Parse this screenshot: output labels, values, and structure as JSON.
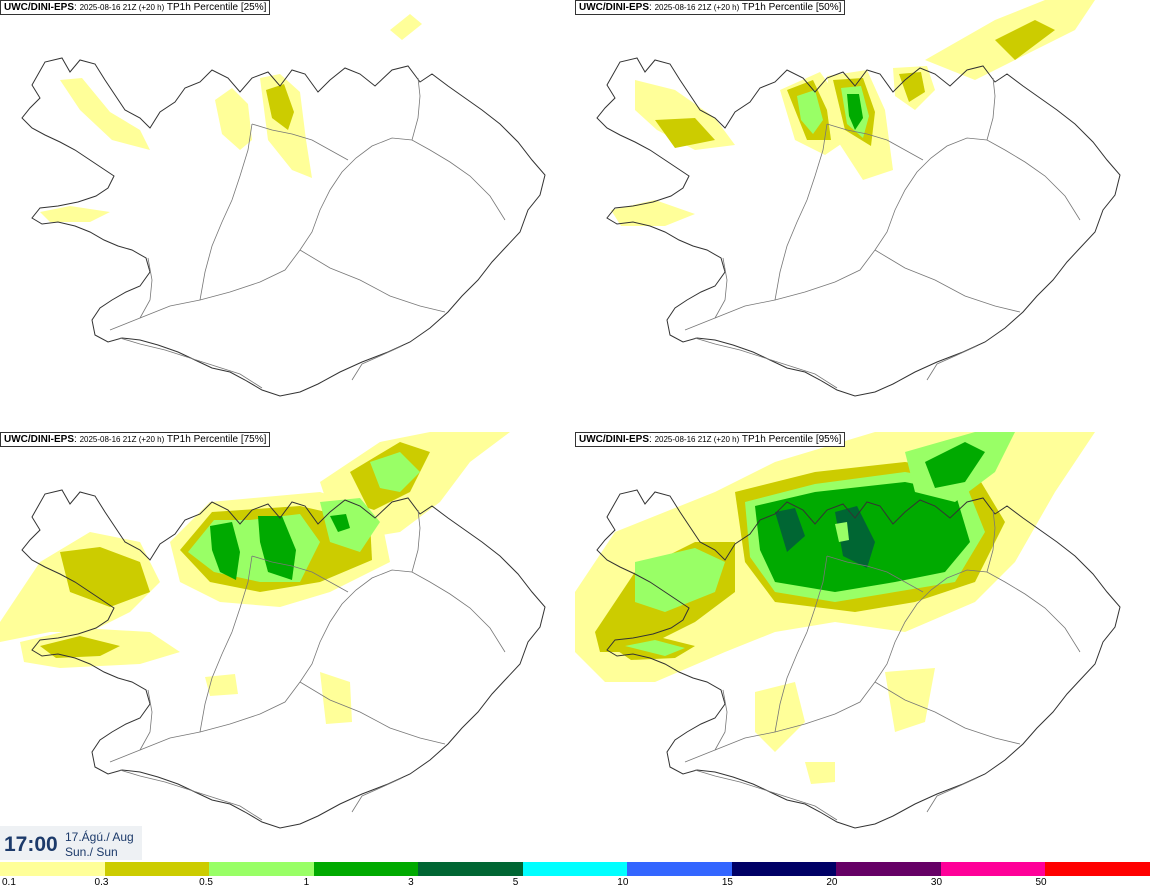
{
  "panels": [
    {
      "model": "UWC/DINI-EPS",
      "run": "2025-08-16 21Z (+20 h)",
      "field": "TP1h Percentile [25%]",
      "percentile": 25
    },
    {
      "model": "UWC/DINI-EPS",
      "run": "2025-08-16 21Z (+20 h)",
      "field": "TP1h Percentile [50%]",
      "percentile": 50
    },
    {
      "model": "UWC/DINI-EPS",
      "run": "2025-08-16 21Z (+20 h)",
      "field": "TP1h Percentile [75%]",
      "percentile": 75
    },
    {
      "model": "UWC/DINI-EPS",
      "run": "2025-08-16 21Z (+20 h)",
      "field": "TP1h Percentile [95%]",
      "percentile": 95
    }
  ],
  "valid_time": {
    "time": "17:00",
    "date_line1": "17.Ágú./ Aug",
    "date_line2": "Sun./ Sun"
  },
  "legend": {
    "colors": [
      "#ffff99",
      "#cccc00",
      "#99ff66",
      "#00aa00",
      "#006633",
      "#00ffff",
      "#3366ff",
      "#000066",
      "#660066",
      "#ff0099",
      "#ff0000"
    ],
    "ticks": [
      "0.1",
      "0.3",
      "0.5",
      "1",
      "3",
      "5",
      "10",
      "15",
      "20",
      "30",
      "50"
    ]
  }
}
